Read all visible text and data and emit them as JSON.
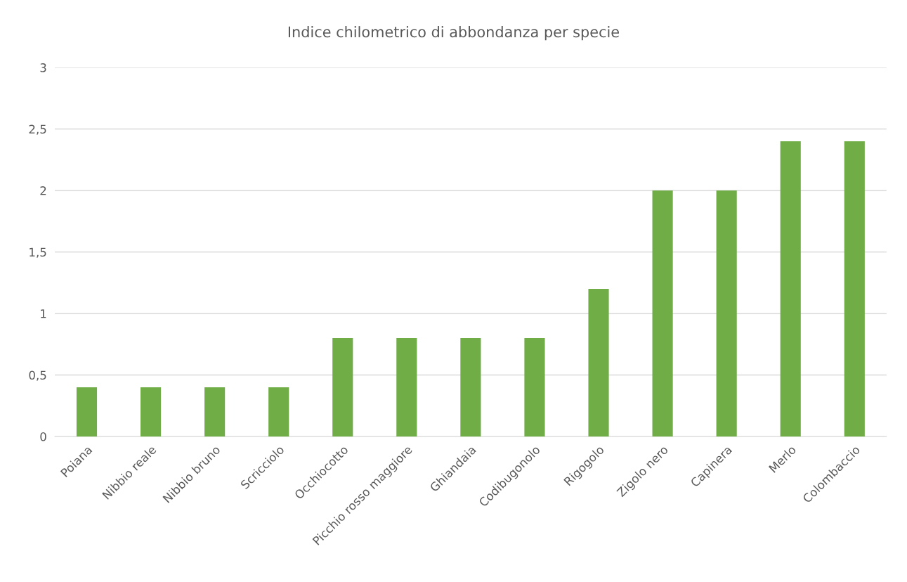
{
  "chart_data": {
    "type": "bar",
    "title": "Indice chilometrico di abbondanza per specie",
    "categories": [
      "Poiana",
      "Nibbio reale",
      "Nibbio bruno",
      "Scricciolo",
      "Occhiocotto",
      "Picchio rosso maggiore",
      "Ghiandaia",
      "Codibugonolo",
      "Rigogolo",
      "Zigolo nero",
      "Capinera",
      "Merlo",
      "Colombaccio"
    ],
    "values": [
      0.4,
      0.4,
      0.4,
      0.4,
      0.8,
      0.8,
      0.8,
      0.8,
      1.2,
      2,
      2,
      2.4,
      2.4
    ],
    "color": "#70ad47",
    "ylim": [
      0,
      3
    ],
    "yticks": [
      0,
      {
        "value": 0.5,
        "label": "0,5"
      },
      1,
      {
        "value": 1.5,
        "label": "1,5"
      },
      2,
      {
        "value": 2.5,
        "label": "2,5"
      },
      3
    ],
    "grid": "y"
  }
}
